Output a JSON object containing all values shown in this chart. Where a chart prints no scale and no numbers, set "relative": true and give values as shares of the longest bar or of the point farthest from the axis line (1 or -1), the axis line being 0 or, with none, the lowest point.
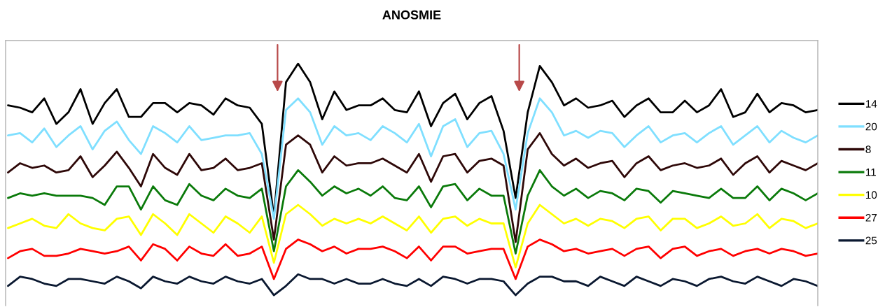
{
  "chart_data": {
    "type": "line",
    "title": "ANOSMIE",
    "relative": true,
    "legend": "right",
    "categories": [
      null,
      null,
      null,
      null,
      null,
      null,
      null,
      null,
      null,
      null,
      null,
      null,
      null,
      null,
      null,
      null,
      null,
      null,
      null,
      null,
      null,
      null,
      null,
      null,
      null,
      null,
      null,
      null,
      null,
      null,
      null,
      null,
      null,
      null,
      null,
      null,
      null,
      null,
      null,
      null,
      null,
      null,
      null,
      null,
      null,
      null,
      null,
      null,
      null,
      null,
      null,
      null,
      null,
      null,
      null,
      null,
      null,
      null,
      null,
      null,
      null,
      null,
      null,
      null,
      null,
      null,
      null,
      null
    ],
    "series": [
      {
        "name": "14",
        "color": "#000000",
        "values": [
          0.82,
          0.81,
          0.79,
          0.85,
          0.74,
          0.79,
          0.89,
          0.74,
          0.83,
          0.89,
          0.77,
          0.77,
          0.83,
          0.83,
          0.79,
          0.83,
          0.82,
          0.78,
          0.85,
          0.82,
          0.81,
          0.74,
          0.34,
          0.92,
          1.0,
          0.92,
          0.76,
          0.88,
          0.8,
          0.82,
          0.82,
          0.85,
          0.8,
          0.79,
          0.88,
          0.73,
          0.83,
          0.87,
          0.76,
          0.83,
          0.86,
          0.71,
          0.42,
          0.79,
          0.99,
          0.92,
          0.82,
          0.85,
          0.81,
          0.82,
          0.84,
          0.77,
          0.82,
          0.85,
          0.79,
          0.79,
          0.84,
          0.79,
          0.82,
          0.89,
          0.77,
          0.79,
          0.87,
          0.79,
          0.83,
          0.82,
          0.79,
          0.8
        ]
      },
      {
        "name": "20",
        "color": "#7fdfff",
        "values": [
          0.69,
          0.7,
          0.66,
          0.72,
          0.64,
          0.69,
          0.73,
          0.63,
          0.71,
          0.75,
          0.67,
          0.61,
          0.73,
          0.7,
          0.66,
          0.73,
          0.67,
          0.68,
          0.69,
          0.69,
          0.7,
          0.61,
          0.33,
          0.8,
          0.85,
          0.79,
          0.65,
          0.73,
          0.69,
          0.7,
          0.67,
          0.73,
          0.7,
          0.66,
          0.74,
          0.6,
          0.73,
          0.76,
          0.64,
          0.7,
          0.71,
          0.61,
          0.37,
          0.7,
          0.85,
          0.79,
          0.69,
          0.71,
          0.68,
          0.71,
          0.7,
          0.64,
          0.69,
          0.73,
          0.66,
          0.69,
          0.7,
          0.66,
          0.7,
          0.73,
          0.65,
          0.69,
          0.73,
          0.66,
          0.71,
          0.68,
          0.66,
          0.69
        ]
      },
      {
        "name": "8",
        "color": "#2e0808",
        "values": [
          0.53,
          0.57,
          0.55,
          0.56,
          0.53,
          0.54,
          0.6,
          0.51,
          0.56,
          0.62,
          0.55,
          0.47,
          0.61,
          0.55,
          0.52,
          0.61,
          0.54,
          0.55,
          0.59,
          0.54,
          0.55,
          0.57,
          0.24,
          0.65,
          0.69,
          0.65,
          0.53,
          0.6,
          0.56,
          0.57,
          0.57,
          0.59,
          0.56,
          0.53,
          0.61,
          0.49,
          0.6,
          0.61,
          0.53,
          0.58,
          0.59,
          0.56,
          0.23,
          0.63,
          0.7,
          0.61,
          0.56,
          0.59,
          0.55,
          0.57,
          0.58,
          0.51,
          0.57,
          0.6,
          0.54,
          0.56,
          0.57,
          0.55,
          0.56,
          0.59,
          0.52,
          0.57,
          0.6,
          0.53,
          0.58,
          0.56,
          0.54,
          0.57
        ]
      },
      {
        "name": "11",
        "color": "#0a7a0a",
        "values": [
          0.42,
          0.44,
          0.43,
          0.44,
          0.43,
          0.43,
          0.43,
          0.42,
          0.39,
          0.47,
          0.47,
          0.37,
          0.47,
          0.41,
          0.39,
          0.48,
          0.43,
          0.41,
          0.46,
          0.43,
          0.42,
          0.46,
          0.19,
          0.47,
          0.54,
          0.49,
          0.43,
          0.47,
          0.44,
          0.46,
          0.43,
          0.47,
          0.42,
          0.41,
          0.47,
          0.38,
          0.47,
          0.48,
          0.41,
          0.46,
          0.43,
          0.43,
          0.18,
          0.43,
          0.54,
          0.47,
          0.43,
          0.46,
          0.42,
          0.45,
          0.44,
          0.41,
          0.46,
          0.45,
          0.4,
          0.45,
          0.44,
          0.43,
          0.42,
          0.46,
          0.42,
          0.42,
          0.47,
          0.41,
          0.46,
          0.44,
          0.41,
          0.44
        ]
      },
      {
        "name": "10",
        "color": "#ffff00",
        "values": [
          0.29,
          0.31,
          0.33,
          0.3,
          0.29,
          0.35,
          0.31,
          0.29,
          0.28,
          0.33,
          0.34,
          0.26,
          0.35,
          0.31,
          0.26,
          0.35,
          0.31,
          0.27,
          0.34,
          0.31,
          0.27,
          0.34,
          0.14,
          0.35,
          0.39,
          0.35,
          0.3,
          0.33,
          0.31,
          0.33,
          0.31,
          0.34,
          0.31,
          0.28,
          0.34,
          0.27,
          0.33,
          0.34,
          0.3,
          0.33,
          0.31,
          0.31,
          0.12,
          0.31,
          0.39,
          0.35,
          0.31,
          0.33,
          0.3,
          0.33,
          0.32,
          0.29,
          0.33,
          0.34,
          0.28,
          0.33,
          0.33,
          0.29,
          0.31,
          0.34,
          0.3,
          0.31,
          0.35,
          0.29,
          0.33,
          0.32,
          0.29,
          0.31
        ]
      },
      {
        "name": "27",
        "color": "#ff0000",
        "values": [
          0.16,
          0.19,
          0.2,
          0.17,
          0.17,
          0.18,
          0.2,
          0.19,
          0.18,
          0.19,
          0.21,
          0.15,
          0.22,
          0.2,
          0.15,
          0.21,
          0.18,
          0.17,
          0.22,
          0.17,
          0.18,
          0.21,
          0.07,
          0.2,
          0.24,
          0.22,
          0.19,
          0.21,
          0.18,
          0.2,
          0.2,
          0.21,
          0.19,
          0.16,
          0.21,
          0.15,
          0.21,
          0.21,
          0.18,
          0.19,
          0.2,
          0.2,
          0.07,
          0.21,
          0.24,
          0.22,
          0.19,
          0.2,
          0.18,
          0.19,
          0.2,
          0.17,
          0.2,
          0.21,
          0.16,
          0.2,
          0.21,
          0.17,
          0.19,
          0.2,
          0.17,
          0.19,
          0.2,
          0.18,
          0.2,
          0.19,
          0.17,
          0.18
        ]
      },
      {
        "name": "25",
        "color": "#0a1830",
        "values": [
          0.04,
          0.08,
          0.07,
          0.05,
          0.04,
          0.07,
          0.07,
          0.06,
          0.05,
          0.08,
          0.06,
          0.03,
          0.08,
          0.06,
          0.05,
          0.08,
          0.06,
          0.05,
          0.08,
          0.06,
          0.05,
          0.07,
          0.0,
          0.04,
          0.09,
          0.07,
          0.07,
          0.05,
          0.07,
          0.05,
          0.05,
          0.07,
          0.05,
          0.04,
          0.07,
          0.04,
          0.08,
          0.07,
          0.05,
          0.07,
          0.07,
          0.06,
          0.0,
          0.05,
          0.08,
          0.08,
          0.06,
          0.06,
          0.04,
          0.08,
          0.06,
          0.04,
          0.08,
          0.06,
          0.04,
          0.07,
          0.06,
          0.04,
          0.07,
          0.08,
          0.06,
          0.05,
          0.08,
          0.06,
          0.04,
          0.07,
          0.06,
          0.04
        ]
      }
    ]
  }
}
